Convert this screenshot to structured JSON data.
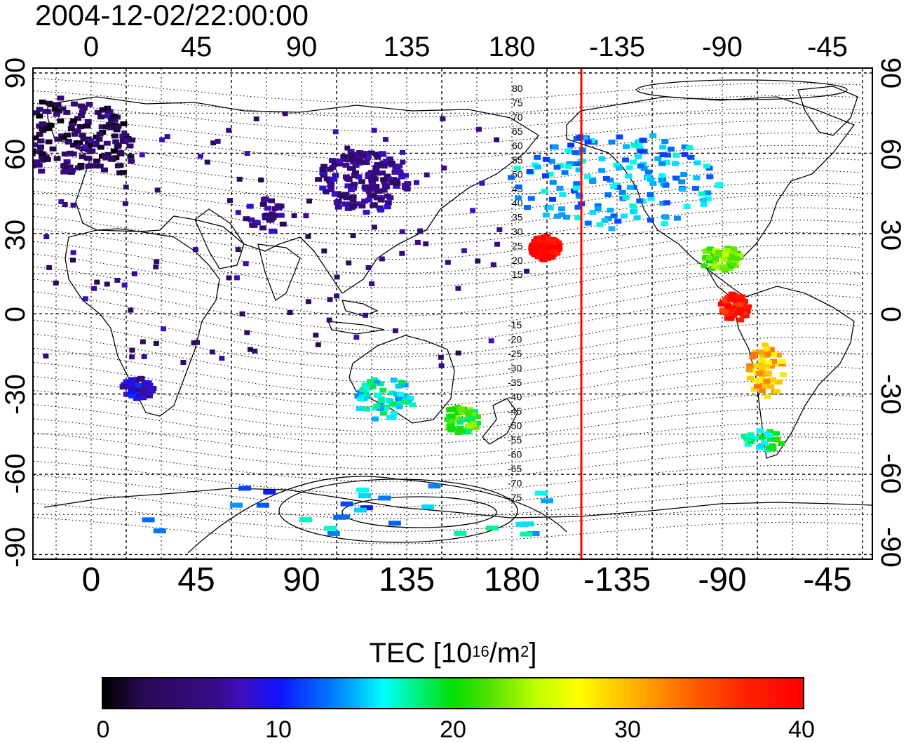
{
  "title": "2004-12-02/22:00:00",
  "top_lon_ticks": [
    "0",
    "45",
    "90",
    "135",
    "180",
    "-135",
    "-90",
    "-45"
  ],
  "bottom_lon_ticks": [
    "0",
    "45",
    "90",
    "135",
    "180",
    "-135",
    "-90",
    "-45"
  ],
  "left_lat_ticks": [
    "90",
    "60",
    "30",
    "0",
    "-30",
    "-60",
    "-90"
  ],
  "right_lat_ticks": [
    "90",
    "60",
    "30",
    "0",
    "-30",
    "-60",
    "-90"
  ],
  "contour_labels_north": [
    "80",
    "75",
    "70",
    "65",
    "60",
    "55",
    "50",
    "45",
    "40",
    "35",
    "30",
    "25",
    "20",
    "15"
  ],
  "contour_labels_south": [
    "-15",
    "-20",
    "-25",
    "-30",
    "-35",
    "-40",
    "-45",
    "-50",
    "-55",
    "-60",
    "-65",
    "-70",
    "-75"
  ],
  "colorbar": {
    "label_main": "TEC  [10",
    "label_exp1": "16",
    "label_mid": "/m",
    "label_exp2": "2",
    "label_end": "]",
    "ticks": [
      "0",
      "10",
      "20",
      "30",
      "40"
    ],
    "range": [
      0,
      40
    ]
  },
  "terminator_line_color": "#ff0000",
  "terminator_longitude": -150,
  "tec_regions": [
    {
      "region": "Europe",
      "tec": 3
    },
    {
      "region": "East Asia",
      "tec": 6
    },
    {
      "region": "North America",
      "tec": 14
    },
    {
      "region": "Caribbean / Central America",
      "tec": 22
    },
    {
      "region": "South America north",
      "tec": 38
    },
    {
      "region": "South America central",
      "tec": 30
    },
    {
      "region": "Patagonia",
      "tec": 18
    },
    {
      "region": "Australia",
      "tec": 16
    },
    {
      "region": "New Zealand",
      "tec": 21
    },
    {
      "region": "Hawaii",
      "tec": 39
    },
    {
      "region": "Antarctica",
      "tec": 11
    },
    {
      "region": "South Africa",
      "tec": 8
    }
  ]
}
